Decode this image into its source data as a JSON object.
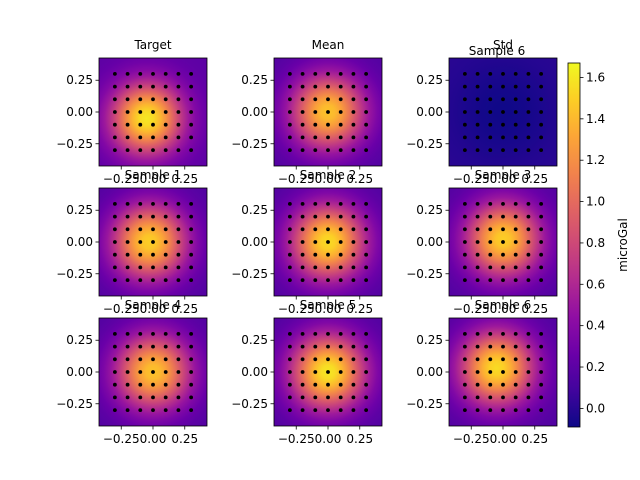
{
  "chart_data": {
    "type": "heatmap",
    "colormap": "plasma",
    "panels": [
      {
        "title": "Target",
        "peak": 1.6,
        "center": [
          -0.05,
          -0.05
        ],
        "sigma": 0.19,
        "floor": 0.2,
        "extra_title": ""
      },
      {
        "title": "Mean",
        "peak": 1.45,
        "center": [
          0.0,
          0.0
        ],
        "sigma": 0.2,
        "floor": 0.15,
        "extra_title": ""
      },
      {
        "title": "Std",
        "peak": -0.08,
        "center": [
          0.0,
          0.0
        ],
        "sigma": 0.3,
        "floor": 0.02,
        "extra_title": "Sample 6"
      },
      {
        "title": "Sample 1",
        "peak": 1.5,
        "center": [
          -0.03,
          0.0
        ],
        "sigma": 0.2,
        "floor": 0.15,
        "extra_title": ""
      },
      {
        "title": "Sample 2",
        "peak": 1.55,
        "center": [
          0.0,
          0.0
        ],
        "sigma": 0.2,
        "floor": 0.15,
        "extra_title": ""
      },
      {
        "title": "Sample 3",
        "peak": 1.5,
        "center": [
          0.0,
          0.02
        ],
        "sigma": 0.2,
        "floor": 0.15,
        "extra_title": ""
      },
      {
        "title": "Sample 4",
        "peak": 1.45,
        "center": [
          0.0,
          0.0
        ],
        "sigma": 0.2,
        "floor": 0.15,
        "extra_title": ""
      },
      {
        "title": "Sample 5",
        "peak": 1.6,
        "center": [
          0.0,
          0.0
        ],
        "sigma": 0.2,
        "floor": 0.15,
        "extra_title": ""
      },
      {
        "title": "Sample 6",
        "peak": 1.55,
        "center": [
          -0.05,
          0.03
        ],
        "sigma": 0.2,
        "floor": 0.15,
        "extra_title": ""
      }
    ],
    "xlim": [
      -0.425,
      0.425
    ],
    "ylim": [
      -0.425,
      0.425
    ],
    "x_ticks": [
      -0.25,
      0.0,
      0.25
    ],
    "x_tick_labels": [
      "−0.25",
      "0.00",
      "0.25"
    ],
    "y_ticks": [
      0.25,
      0.0,
      -0.25
    ],
    "y_tick_labels": [
      "0.25",
      "0.00",
      "−0.25"
    ],
    "stations": [
      -0.3,
      -0.2,
      -0.1,
      0.0,
      0.1,
      0.2,
      0.3
    ],
    "colorbar": {
      "label": "microGal",
      "vmin": -0.09,
      "vmax": 1.67,
      "ticks": [
        0.0,
        0.2,
        0.4,
        0.6,
        0.8,
        1.0,
        1.2,
        1.4,
        1.6
      ],
      "tick_labels": [
        "0.0",
        "0.2",
        "0.4",
        "0.6",
        "0.8",
        "1.0",
        "1.2",
        "1.4",
        "1.6"
      ]
    }
  }
}
